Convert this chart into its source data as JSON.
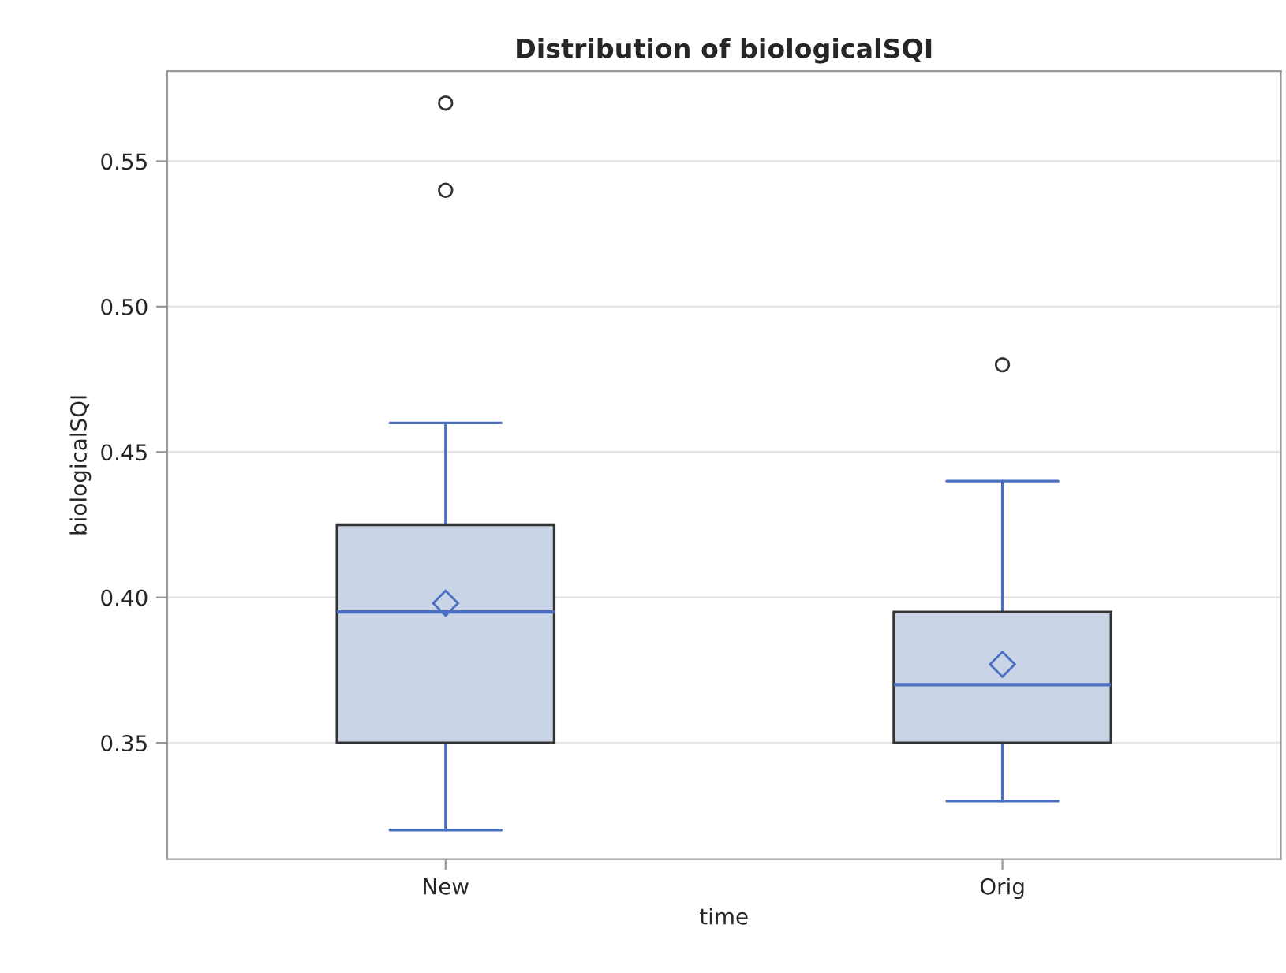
{
  "chart_data": {
    "type": "box",
    "title": "Distribution of biologicalSQI",
    "xlabel": "time",
    "ylabel": "biologicalSQI",
    "categories": [
      "New",
      "Orig"
    ],
    "boxes": [
      {
        "low": 0.32,
        "q1": 0.35,
        "median": 0.395,
        "q3": 0.425,
        "high": 0.46,
        "mean": 0.398,
        "outliers": [
          0.54,
          0.57
        ]
      },
      {
        "low": 0.33,
        "q1": 0.35,
        "median": 0.37,
        "q3": 0.395,
        "high": 0.44,
        "mean": 0.377,
        "outliers": [
          0.48
        ]
      }
    ],
    "color": "#c9d5e6",
    "ylim": [
      0.31,
      0.581
    ],
    "yticks": [
      {
        "value": 0.35,
        "label": "0.35"
      },
      {
        "value": 0.4,
        "label": "0.40"
      },
      {
        "value": 0.45,
        "label": "0.45"
      },
      {
        "value": 0.5,
        "label": "0.50"
      },
      {
        "value": 0.55,
        "label": "0.55"
      }
    ],
    "grid": "y"
  }
}
